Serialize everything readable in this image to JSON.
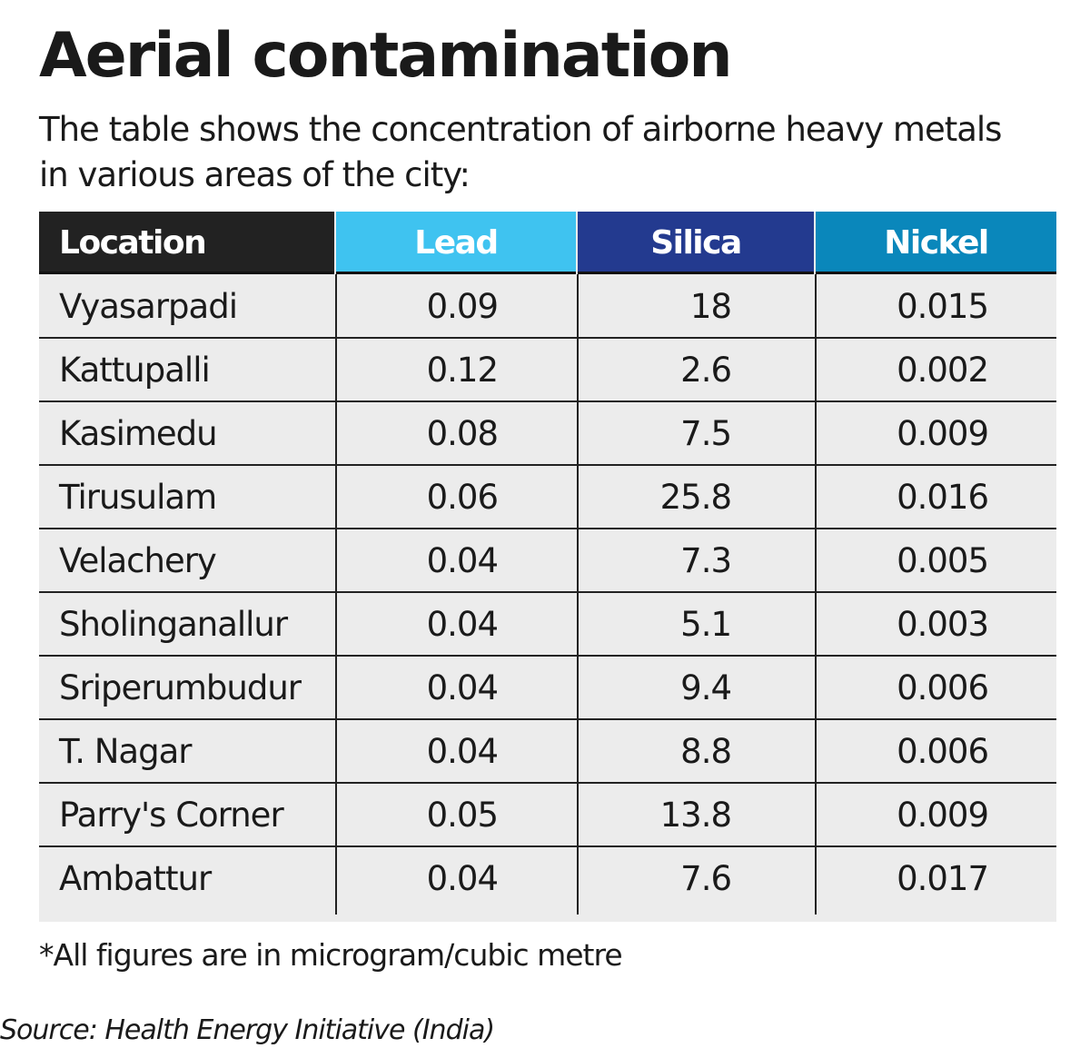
{
  "title": "Aerial contamination",
  "subtitle": "The table shows the concentration of airborne heavy metals in various areas of the city:",
  "footnote": "*All figures are in microgram/cubic metre",
  "source": "Source: Health Energy Initiative (India)",
  "colors": {
    "location": "#222222",
    "lead": "#3fc3f0",
    "silica": "#233a8f",
    "nickel": "#0a87bb"
  },
  "chart_data": {
    "type": "table",
    "columns": [
      "Location",
      "Lead",
      "Silica",
      "Nickel"
    ],
    "rows": [
      [
        "Vyasarpadi",
        "0.09",
        "18",
        "0.015"
      ],
      [
        "Kattupalli",
        "0.12",
        "2.6",
        "0.002"
      ],
      [
        "Kasimedu",
        "0.08",
        "7.5",
        "0.009"
      ],
      [
        "Tirusulam",
        "0.06",
        "25.8",
        "0.016"
      ],
      [
        "Velachery",
        "0.04",
        "7.3",
        "0.005"
      ],
      [
        "Sholinganallur",
        "0.04",
        "5.1",
        "0.003"
      ],
      [
        "Sriperumbudur",
        "0.04",
        "9.4",
        "0.006"
      ],
      [
        "T. Nagar",
        "0.04",
        "8.8",
        "0.006"
      ],
      [
        "Parry's Corner",
        "0.05",
        "13.8",
        "0.009"
      ],
      [
        "Ambattur",
        "0.04",
        "7.6",
        "0.017"
      ]
    ]
  }
}
